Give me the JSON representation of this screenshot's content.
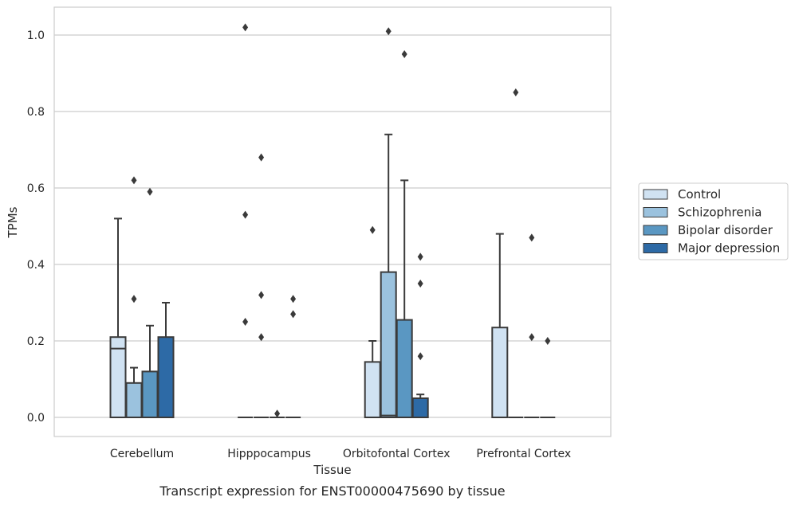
{
  "chart_data": {
    "type": "box",
    "title": "",
    "caption": "Transcript expression for ENST00000475690 by tissue",
    "xlabel": "Tissue",
    "ylabel": "TPMs",
    "ylim": [
      -0.05,
      1.075
    ],
    "yticks": [
      "0.0",
      "0.2",
      "0.4",
      "0.6",
      "0.8",
      "1.0"
    ],
    "grid": true,
    "legend_position": "right",
    "categories": [
      "Cerebellum",
      "Hipppocampus",
      "Orbitofontal Cortex",
      "Prefrontal Cortex"
    ],
    "series": [
      {
        "name": "Control",
        "color": "#d0e2f2",
        "boxes": [
          {
            "q1": 0.0,
            "median": 0.18,
            "q3": 0.21,
            "whisker_low": 0.0,
            "whisker_high": 0.52,
            "outliers": []
          },
          {
            "q1": 0.0,
            "median": 0.0,
            "q3": 0.0,
            "whisker_low": 0.0,
            "whisker_high": 0.0,
            "outliers": [
              1.02,
              0.53,
              0.25
            ]
          },
          {
            "q1": 0.0,
            "median": 0.0,
            "q3": 0.145,
            "whisker_low": 0.0,
            "whisker_high": 0.2,
            "outliers": [
              0.49
            ]
          },
          {
            "q1": 0.0,
            "median": 0.0,
            "q3": 0.235,
            "whisker_low": 0.0,
            "whisker_high": 0.48,
            "outliers": []
          }
        ]
      },
      {
        "name": "Schizophrenia",
        "color": "#9bc2de",
        "boxes": [
          {
            "q1": 0.0,
            "median": 0.0,
            "q3": 0.09,
            "whisker_low": 0.0,
            "whisker_high": 0.13,
            "outliers": [
              0.62,
              0.31
            ]
          },
          {
            "q1": 0.0,
            "median": 0.0,
            "q3": 0.0,
            "whisker_low": 0.0,
            "whisker_high": 0.0,
            "outliers": [
              0.68,
              0.32,
              0.21
            ]
          },
          {
            "q1": 0.0,
            "median": 0.005,
            "q3": 0.38,
            "whisker_low": 0.0,
            "whisker_high": 0.74,
            "outliers": [
              1.01
            ]
          },
          {
            "q1": 0.0,
            "median": 0.0,
            "q3": 0.0,
            "whisker_low": 0.0,
            "whisker_high": 0.0,
            "outliers": [
              0.85
            ]
          }
        ]
      },
      {
        "name": "Bipolar disorder",
        "color": "#5a97c2",
        "boxes": [
          {
            "q1": 0.0,
            "median": 0.0,
            "q3": 0.12,
            "whisker_low": 0.0,
            "whisker_high": 0.24,
            "outliers": [
              0.59
            ]
          },
          {
            "q1": 0.0,
            "median": 0.0,
            "q3": 0.0,
            "whisker_low": 0.0,
            "whisker_high": 0.0,
            "outliers": [
              0.01
            ]
          },
          {
            "q1": 0.0,
            "median": 0.0,
            "q3": 0.255,
            "whisker_low": 0.0,
            "whisker_high": 0.62,
            "outliers": [
              0.95
            ]
          },
          {
            "q1": 0.0,
            "median": 0.0,
            "q3": 0.0,
            "whisker_low": 0.0,
            "whisker_high": 0.0,
            "outliers": [
              0.47,
              0.21
            ]
          }
        ]
      },
      {
        "name": "Major depression",
        "color": "#2d6aa6",
        "boxes": [
          {
            "q1": 0.0,
            "median": 0.0,
            "q3": 0.21,
            "whisker_low": 0.0,
            "whisker_high": 0.3,
            "outliers": []
          },
          {
            "q1": 0.0,
            "median": 0.0,
            "q3": 0.0,
            "whisker_low": 0.0,
            "whisker_high": 0.0,
            "outliers": [
              0.31,
              0.27
            ]
          },
          {
            "q1": 0.0,
            "median": 0.0,
            "q3": 0.05,
            "whisker_low": 0.0,
            "whisker_high": 0.06,
            "outliers": [
              0.42,
              0.35,
              0.16
            ]
          },
          {
            "q1": 0.0,
            "median": 0.0,
            "q3": 0.0,
            "whisker_low": 0.0,
            "whisker_high": 0.0,
            "outliers": [
              0.2
            ]
          }
        ]
      }
    ]
  }
}
